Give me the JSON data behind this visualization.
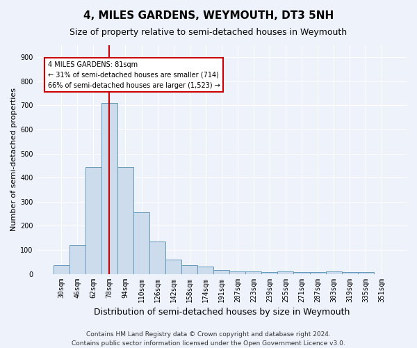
{
  "title": "4, MILES GARDENS, WEYMOUTH, DT3 5NH",
  "subtitle": "Size of property relative to semi-detached houses in Weymouth",
  "xlabel": "Distribution of semi-detached houses by size in Weymouth",
  "ylabel": "Number of semi-detached properties",
  "categories": [
    "30sqm",
    "46sqm",
    "62sqm",
    "78sqm",
    "94sqm",
    "110sqm",
    "126sqm",
    "142sqm",
    "158sqm",
    "174sqm",
    "191sqm",
    "207sqm",
    "223sqm",
    "239sqm",
    "255sqm",
    "271sqm",
    "287sqm",
    "303sqm",
    "319sqm",
    "335sqm",
    "351sqm"
  ],
  "values": [
    35,
    120,
    445,
    710,
    445,
    255,
    135,
    60,
    37,
    30,
    15,
    10,
    10,
    8,
    10,
    8,
    8,
    10,
    8,
    8,
    0
  ],
  "bar_color": "#ccdcec",
  "bar_edge_color": "#6699bb",
  "vline_color": "#cc0000",
  "vline_bin_index": 3,
  "annotation_title": "4 MILES GARDENS: 81sqm",
  "annotation_line1": "← 31% of semi-detached houses are smaller (714)",
  "annotation_line2": "66% of semi-detached houses are larger (1,523) →",
  "annotation_box_color": "#ffffff",
  "annotation_box_edge": "#cc0000",
  "ylim": [
    0,
    950
  ],
  "yticks": [
    0,
    100,
    200,
    300,
    400,
    500,
    600,
    700,
    800,
    900
  ],
  "footer1": "Contains HM Land Registry data © Crown copyright and database right 2024.",
  "footer2": "Contains public sector information licensed under the Open Government Licence v3.0.",
  "background_color": "#eef2fb",
  "grid_color": "#ffffff",
  "title_fontsize": 11,
  "subtitle_fontsize": 9,
  "ylabel_fontsize": 8,
  "xlabel_fontsize": 9,
  "tick_fontsize": 7,
  "annotation_fontsize": 7,
  "footer_fontsize": 6.5
}
